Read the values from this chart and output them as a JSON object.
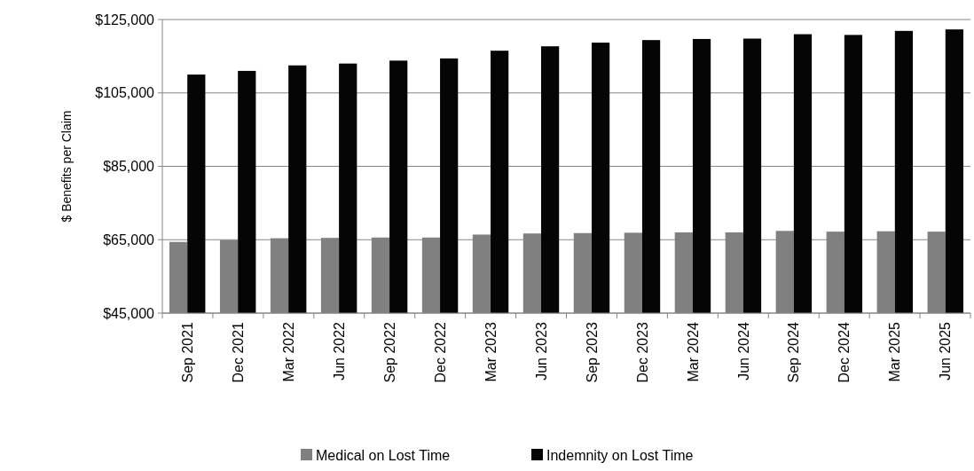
{
  "chart_data": {
    "type": "bar",
    "ylabel": "$ Benefits per Claim",
    "categories": [
      "Sep 2021",
      "Dec 2021",
      "Mar 2022",
      "Jun 2022",
      "Sep 2022",
      "Dec 2022",
      "Mar 2023",
      "Jun 2023",
      "Sep 2023",
      "Dec 2023",
      "Mar 2024",
      "Jun 2024",
      "Sep 2024",
      "Dec 2024",
      "Mar 2025",
      "Jun 2025"
    ],
    "series": [
      {
        "name": "Medical on Lost Time",
        "color": "#808080",
        "values": [
          64400,
          64900,
          65400,
          65500,
          65600,
          65600,
          66400,
          66700,
          66800,
          66900,
          67000,
          67000,
          67400,
          67200,
          67300,
          67200
        ]
      },
      {
        "name": "Indemnity on Lost Time",
        "color": "#050505",
        "values": [
          110000,
          111000,
          112500,
          113000,
          113800,
          114400,
          116500,
          117700,
          118700,
          119400,
          119700,
          119800,
          121000,
          120800,
          121900,
          122300
        ]
      }
    ],
    "ylim": [
      45000,
      125000
    ],
    "yticks": [
      {
        "value": 45000,
        "label": "$45,000"
      },
      {
        "value": 65000,
        "label": "$65,000"
      },
      {
        "value": 85000,
        "label": "$85,000"
      },
      {
        "value": 105000,
        "label": "$105,000"
      },
      {
        "value": 125000,
        "label": "$125,000"
      }
    ],
    "grid": "y",
    "legend": "bottom"
  }
}
